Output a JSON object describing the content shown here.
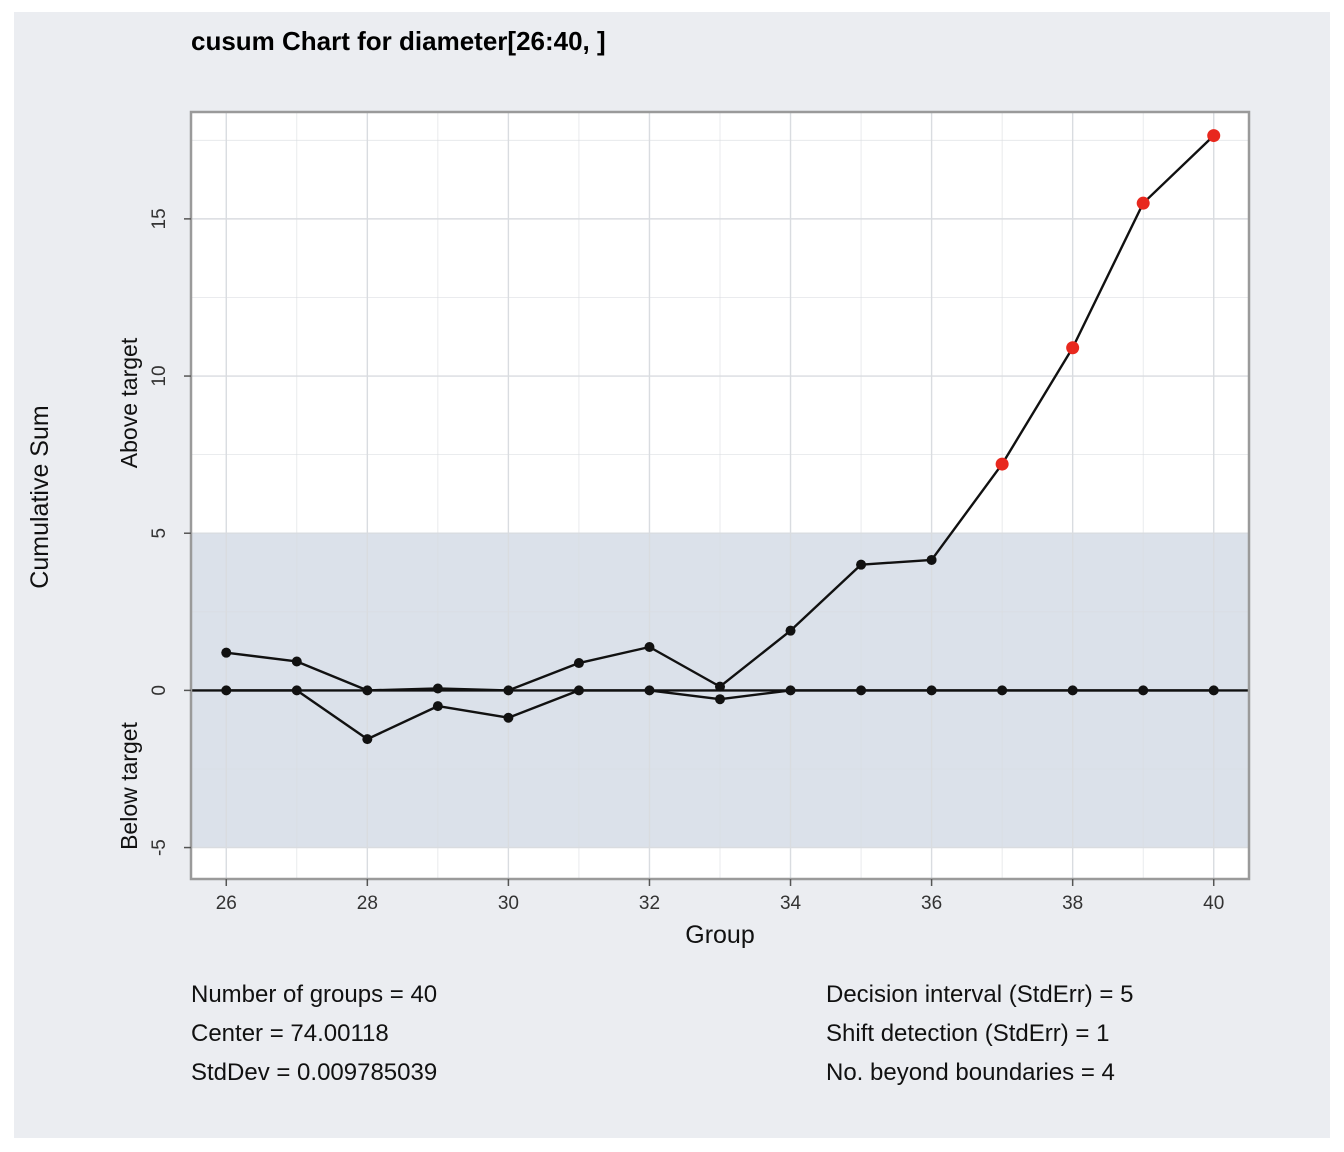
{
  "chart_data": {
    "type": "line",
    "title": "cusum Chart for diameter[26:40, ]",
    "xlabel": "Group",
    "ylabel": "Cumulative Sum",
    "ylabel_upper": "Above target",
    "ylabel_lower": "Below target",
    "xlim": [
      25.5,
      40.5
    ],
    "ylim": [
      -6.0,
      18.4
    ],
    "x_ticks": [
      26,
      28,
      30,
      32,
      34,
      36,
      38,
      40
    ],
    "y_ticks": [
      -5,
      0,
      5,
      10,
      15
    ],
    "decision_band": [
      -5,
      5
    ],
    "center_line": 0,
    "grid": true,
    "x": [
      26,
      27,
      28,
      29,
      30,
      31,
      32,
      33,
      34,
      35,
      36,
      37,
      38,
      39,
      40
    ],
    "series": [
      {
        "values": [
          1.2,
          0.92,
          0.0,
          0.06,
          0.0,
          0.87,
          1.38,
          0.12,
          1.9,
          4.0,
          4.15,
          7.2,
          10.9,
          15.5,
          17.65
        ],
        "beyond": [
          false,
          false,
          false,
          false,
          false,
          false,
          false,
          false,
          false,
          false,
          false,
          true,
          true,
          true,
          true
        ]
      },
      {
        "values": [
          0,
          0,
          -1.55,
          -0.5,
          -0.87,
          0,
          0,
          -0.28,
          0,
          0,
          0,
          0,
          0,
          0,
          0
        ],
        "beyond": [
          false,
          false,
          false,
          false,
          false,
          false,
          false,
          false,
          false,
          false,
          false,
          false,
          false,
          false,
          false
        ]
      }
    ],
    "colors": {
      "panel": "#ebedf1",
      "plot_bg": "#ffffff",
      "band": "#dbe1ea",
      "grid": "#d9dce0",
      "line": "#111111",
      "point": "#111111",
      "beyond_point": "#e8281e",
      "frame": "#9a9a9a"
    }
  },
  "stats": {
    "left": [
      "Number of groups = 40",
      "Center = 74.00118",
      "StdDev = 0.009785039"
    ],
    "right": [
      "Decision interval (StdErr) = 5",
      "Shift detection (StdErr) = 1",
      "No. beyond boundaries = 4"
    ]
  }
}
